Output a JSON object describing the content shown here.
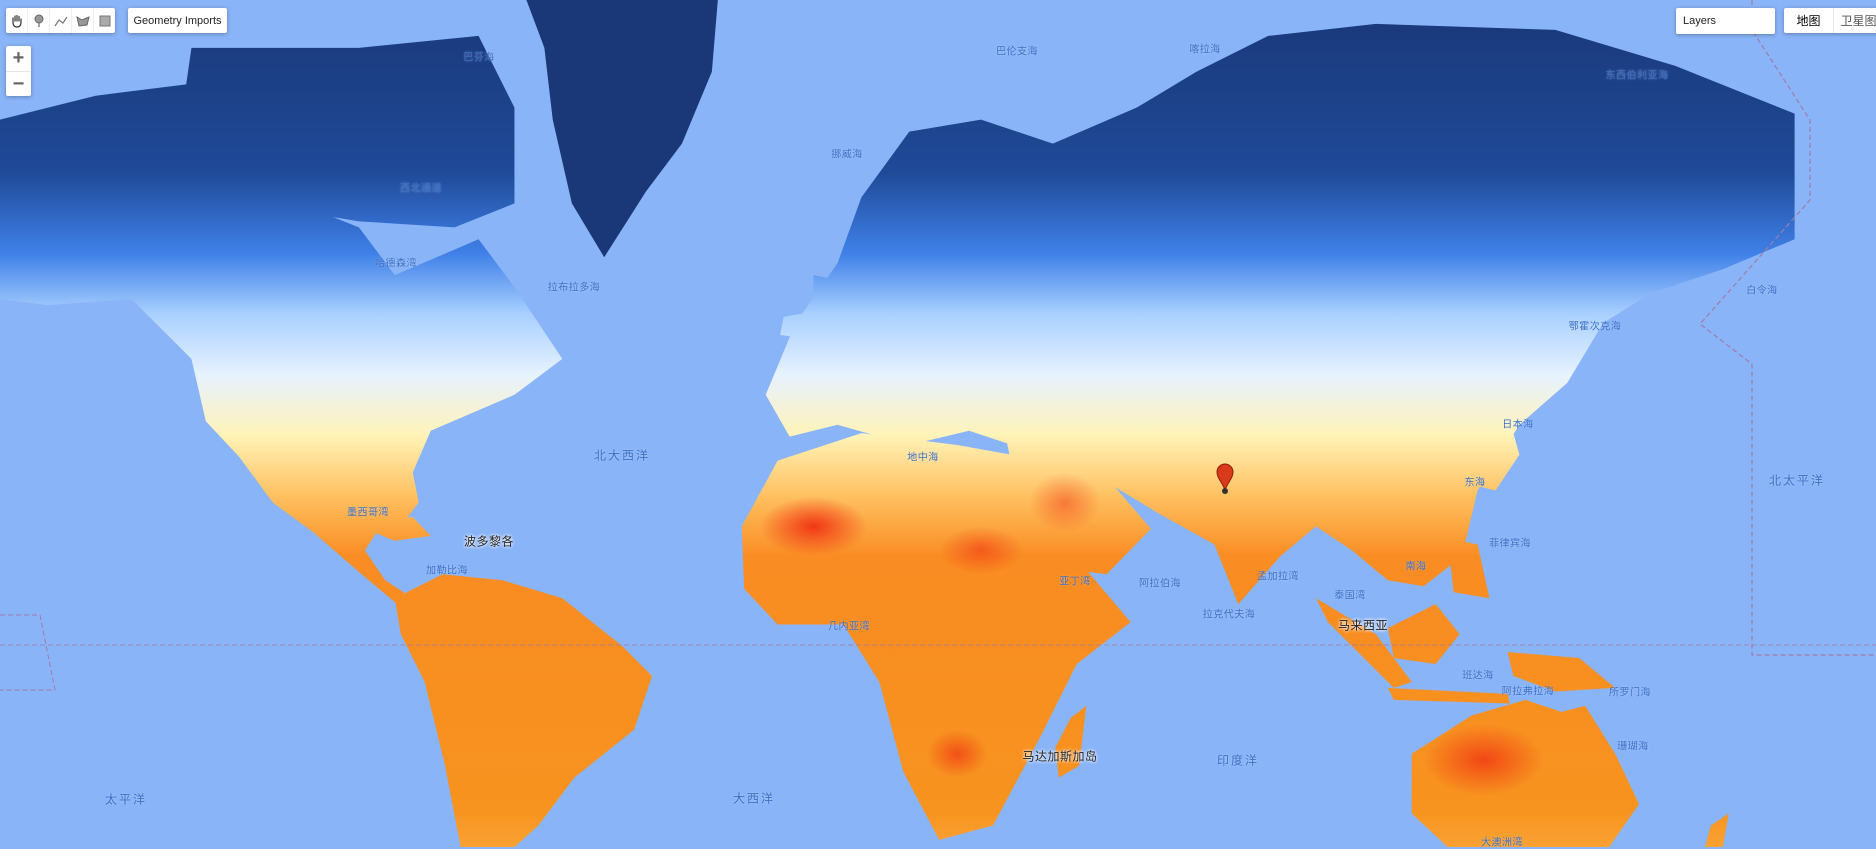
{
  "toolbar": {
    "tools": [
      {
        "name": "pan",
        "icon": "hand-icon"
      },
      {
        "name": "point",
        "icon": "marker-icon"
      },
      {
        "name": "line",
        "icon": "polyline-icon"
      },
      {
        "name": "polygon",
        "icon": "polygon-icon"
      },
      {
        "name": "rectangle",
        "icon": "rectangle-icon"
      }
    ],
    "geometry_imports": "Geometry Imports"
  },
  "zoom": {
    "in": "+",
    "out": "−"
  },
  "layers": {
    "label": "Layers"
  },
  "map_type": {
    "map": "地图",
    "satellite": "卫星图"
  },
  "colors": {
    "ocean": "#8ab4f8",
    "cold": "#1a3778",
    "mild": "#fff4b0",
    "hot": "#f7891f",
    "hottest": "#f02a10",
    "marker": "#d93a1a"
  },
  "marker": {
    "icon": "map-pin-icon"
  },
  "labels": {
    "baffin": "巴芬海",
    "barents": "巴伦支海",
    "kara": "喀拉海",
    "east_siberian": "东西伯利亚海",
    "norwegian": "挪威海",
    "northwest_passage": "西北通道",
    "hudson": "哈德森湾",
    "labrador": "拉布拉多海",
    "north_atlantic": "北大西洋",
    "gulf_mexico": "墨西哥湾",
    "caribbean": "加勒比海",
    "puerto_rico": "波多黎各",
    "mediterranean": "地中海",
    "aden": "亚丁湾",
    "arabian": "阿拉伯海",
    "bengal": "孟加拉湾",
    "south_china": "南海",
    "thailand": "泰国湾",
    "laccadive": "拉克代夫海",
    "banda": "班达海",
    "indian_ocean": "印度洋",
    "philippine": "菲律宾海",
    "bering": "白令海",
    "okhotsk": "鄂霍次克海",
    "japan_sea": "日本海",
    "east_china": "东海",
    "north_pacific": "北太平洋",
    "guinea": "几内亚湾",
    "atlantic": "大西洋",
    "pacific": "太平洋",
    "coral": "珊瑚海",
    "great_australian_bight": "大澳洲湾",
    "arafura": "阿拉弗拉海",
    "solomon": "所罗门海",
    "madagascar": "马达加斯加岛",
    "malaysia": "马来西亚"
  }
}
